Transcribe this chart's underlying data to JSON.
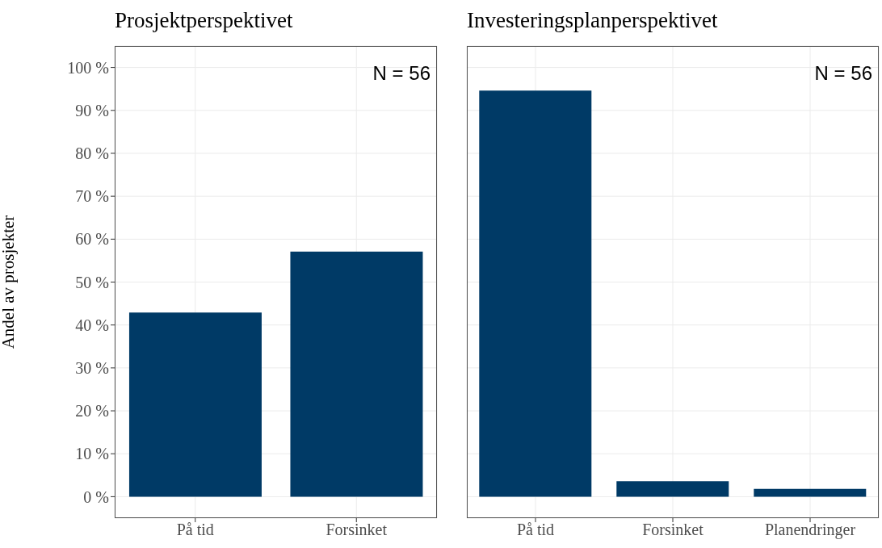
{
  "chart_data": [
    {
      "type": "bar",
      "title": "Prosjektperspektivet",
      "ylabel": "Andel av prosjekter",
      "categories": [
        "På tid",
        "Forsinket"
      ],
      "values": [
        42.9,
        57.1
      ],
      "color": "#003a66",
      "ylim": [
        -5,
        105
      ],
      "yticks": [
        {
          "value": 0,
          "label": "0 %"
        },
        {
          "value": 10,
          "label": "10 %"
        },
        {
          "value": 20,
          "label": "20 %"
        },
        {
          "value": 30,
          "label": "30 %"
        },
        {
          "value": 40,
          "label": "40 %"
        },
        {
          "value": 50,
          "label": "50 %"
        },
        {
          "value": 60,
          "label": "60 %"
        },
        {
          "value": 70,
          "label": "70 %"
        },
        {
          "value": 80,
          "label": "80 %"
        },
        {
          "value": 90,
          "label": "90 %"
        },
        {
          "value": 100,
          "label": "100 %"
        }
      ],
      "grid": true,
      "annotations": [
        "N = 56"
      ]
    },
    {
      "type": "bar",
      "title": "Investeringsplanperspektivet",
      "categories": [
        "På tid",
        "Forsinket",
        "Planendringer"
      ],
      "values": [
        94.6,
        3.6,
        1.8
      ],
      "color": "#003a66",
      "ylim": [
        -5,
        105
      ],
      "yticks": [
        0,
        10,
        20,
        30,
        40,
        50,
        60,
        70,
        80,
        90,
        100
      ],
      "grid": true,
      "tick_labels": "x",
      "annotations": [
        "N = 56"
      ]
    }
  ]
}
